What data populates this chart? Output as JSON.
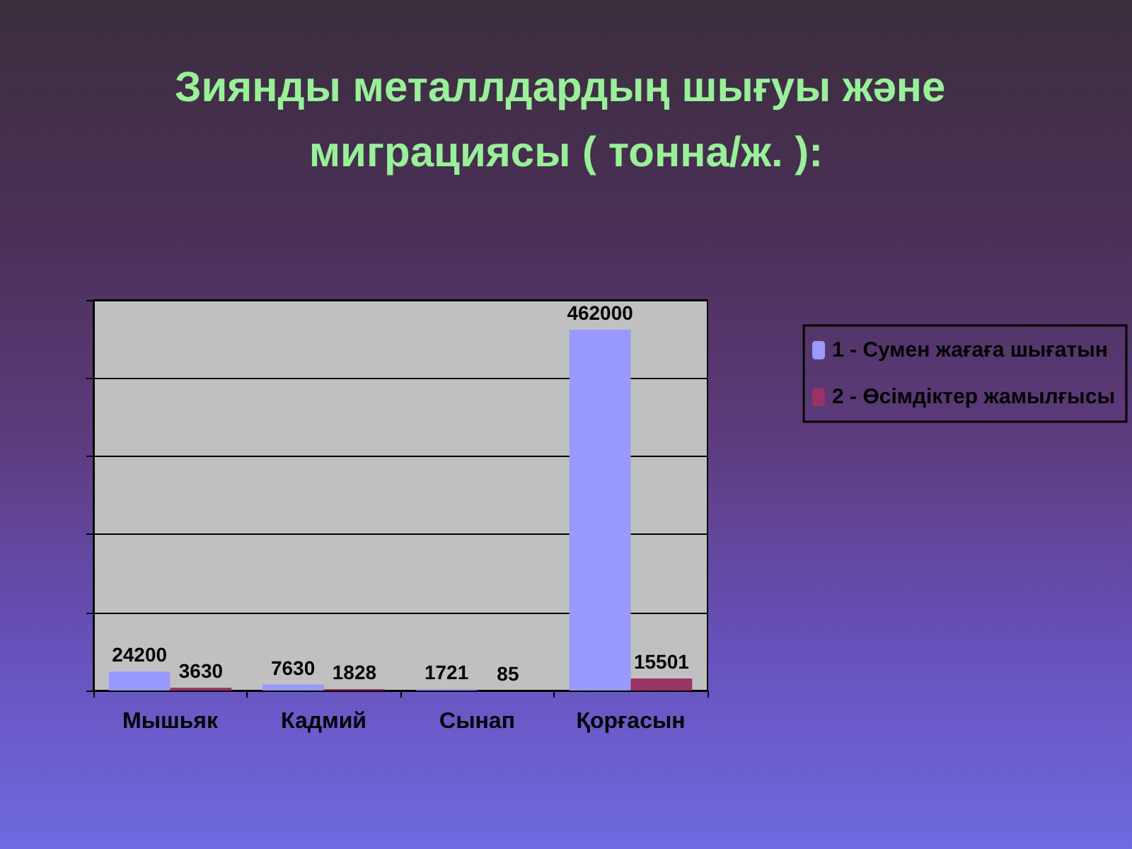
{
  "chart_data": {
    "type": "bar",
    "title": "Зиянды металлдардың шығуы және миграциясы ( тонна/ж. ):",
    "categories": [
      "Мышьяк",
      "Кадмий",
      "Сынап",
      "Қорғасын"
    ],
    "series": [
      {
        "name": "1 - Сумен жағаға шығатын",
        "color": "#9999ff",
        "values": [
          24200,
          7630,
          1721,
          462000
        ]
      },
      {
        "name": "2 - Өсімдіктер жамылғысы",
        "color": "#993366",
        "values": [
          3630,
          1828,
          85,
          15501
        ]
      }
    ],
    "data_labels": true,
    "grid": "y",
    "legend": "right",
    "tick_labels": "x"
  }
}
